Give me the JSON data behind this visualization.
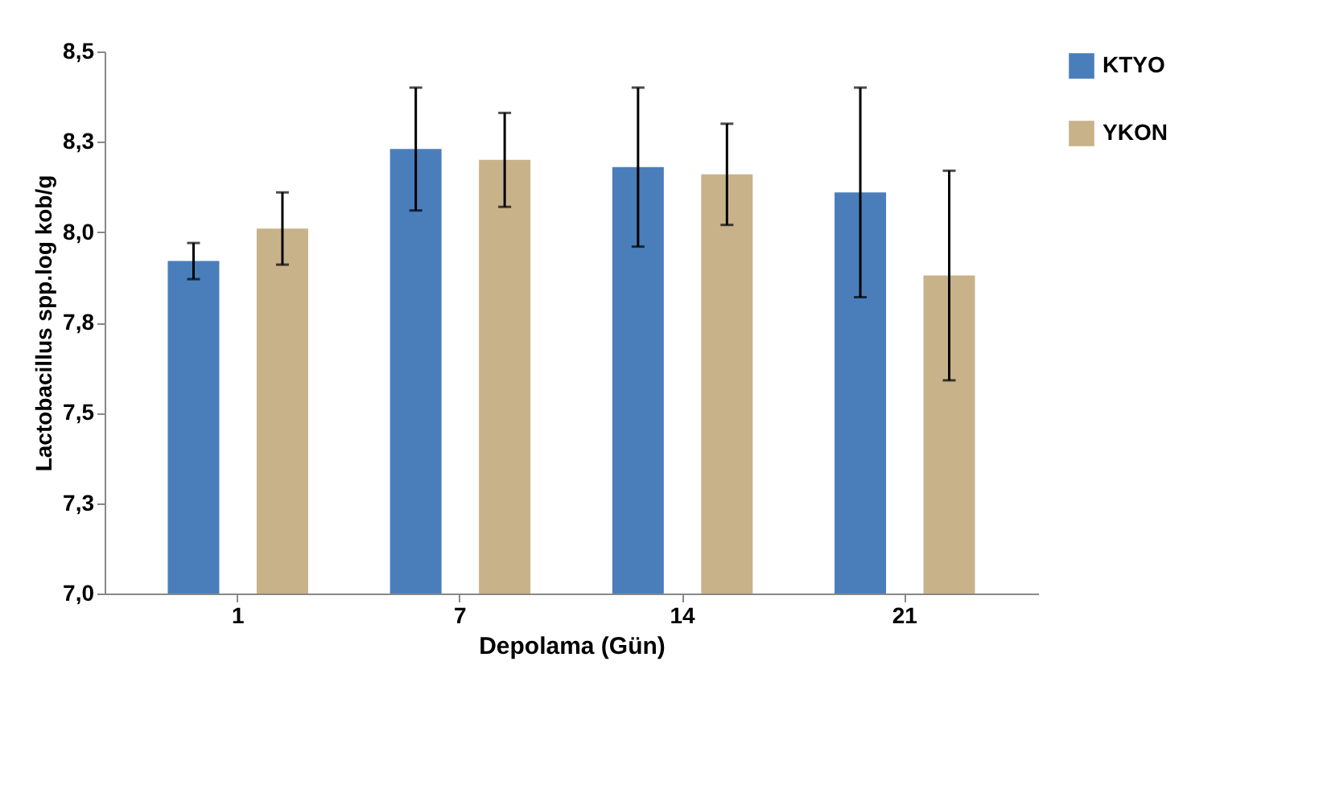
{
  "chart_data": {
    "type": "bar",
    "xlabel": "Depolama  (Gün)",
    "ylabel": "Lactobacillus spp.log kob/g",
    "categories": [
      "1",
      "7",
      "14",
      "21"
    ],
    "series": [
      {
        "name": "KTYO",
        "color": "#4a7ebb",
        "values": [
          7.92,
          8.23,
          8.18,
          8.11
        ],
        "errors": [
          0.05,
          0.17,
          0.22,
          0.29
        ]
      },
      {
        "name": "YKON",
        "color": "#c8b28a",
        "values": [
          8.01,
          8.2,
          8.16,
          7.88
        ],
        "errors": [
          0.1,
          0.13,
          0.14,
          0.29
        ]
      }
    ],
    "ylim": [
      7.0,
      8.5
    ],
    "yticks": [
      {
        "value": 7.0,
        "label": "7,0"
      },
      {
        "value": 7.25,
        "label": "7,3"
      },
      {
        "value": 7.5,
        "label": "7,5"
      },
      {
        "value": 7.75,
        "label": "7,8"
      },
      {
        "value": 8.0,
        "label": "8,0"
      },
      {
        "value": 8.25,
        "label": "8,3"
      },
      {
        "value": 8.5,
        "label": "8,5"
      }
    ],
    "grid": false,
    "legend": "right"
  }
}
